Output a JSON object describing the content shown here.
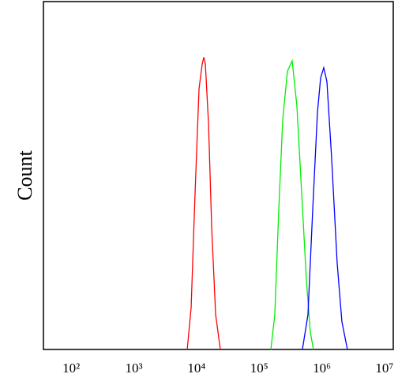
{
  "chart_data": {
    "type": "line",
    "y_label": "Count",
    "log_x": true,
    "xlim": [
      36,
      13800000
    ],
    "ylim": [
      0,
      100
    ],
    "xticks": [
      {
        "value": 100,
        "label": "10²"
      },
      {
        "value": 1000,
        "label": "10³"
      },
      {
        "value": 10000,
        "label": "10⁴"
      },
      {
        "value": 100000,
        "label": "10⁵"
      },
      {
        "value": 1000000,
        "label": "10⁶"
      },
      {
        "value": 10000000,
        "label": "10⁷"
      }
    ],
    "series": [
      {
        "color": "#ff0000",
        "x": [
          7100,
          8200,
          9480,
          10960,
          12300,
          13070,
          13840,
          15530,
          17450,
          20180,
          23990
        ],
        "values": [
          0,
          12,
          45,
          75,
          82,
          84,
          82,
          65,
          35,
          10,
          0
        ]
      },
      {
        "color": "#00ee00",
        "x": [
          153500,
          177500,
          205200,
          237300,
          282400,
          335800,
          399900,
          476400,
          566400,
          654800,
          734800
        ],
        "values": [
          0,
          10,
          40,
          66,
          80,
          83,
          70,
          45,
          20,
          5,
          0
        ]
      },
      {
        "color": "#0000ff",
        "x": [
          489800,
          600100,
          714300,
          849900,
          955000,
          1072000,
          1205000,
          1433000,
          1754000,
          2089000,
          2559000
        ],
        "values": [
          0,
          10,
          40,
          68,
          78,
          81,
          77,
          55,
          25,
          8,
          0
        ]
      }
    ]
  }
}
